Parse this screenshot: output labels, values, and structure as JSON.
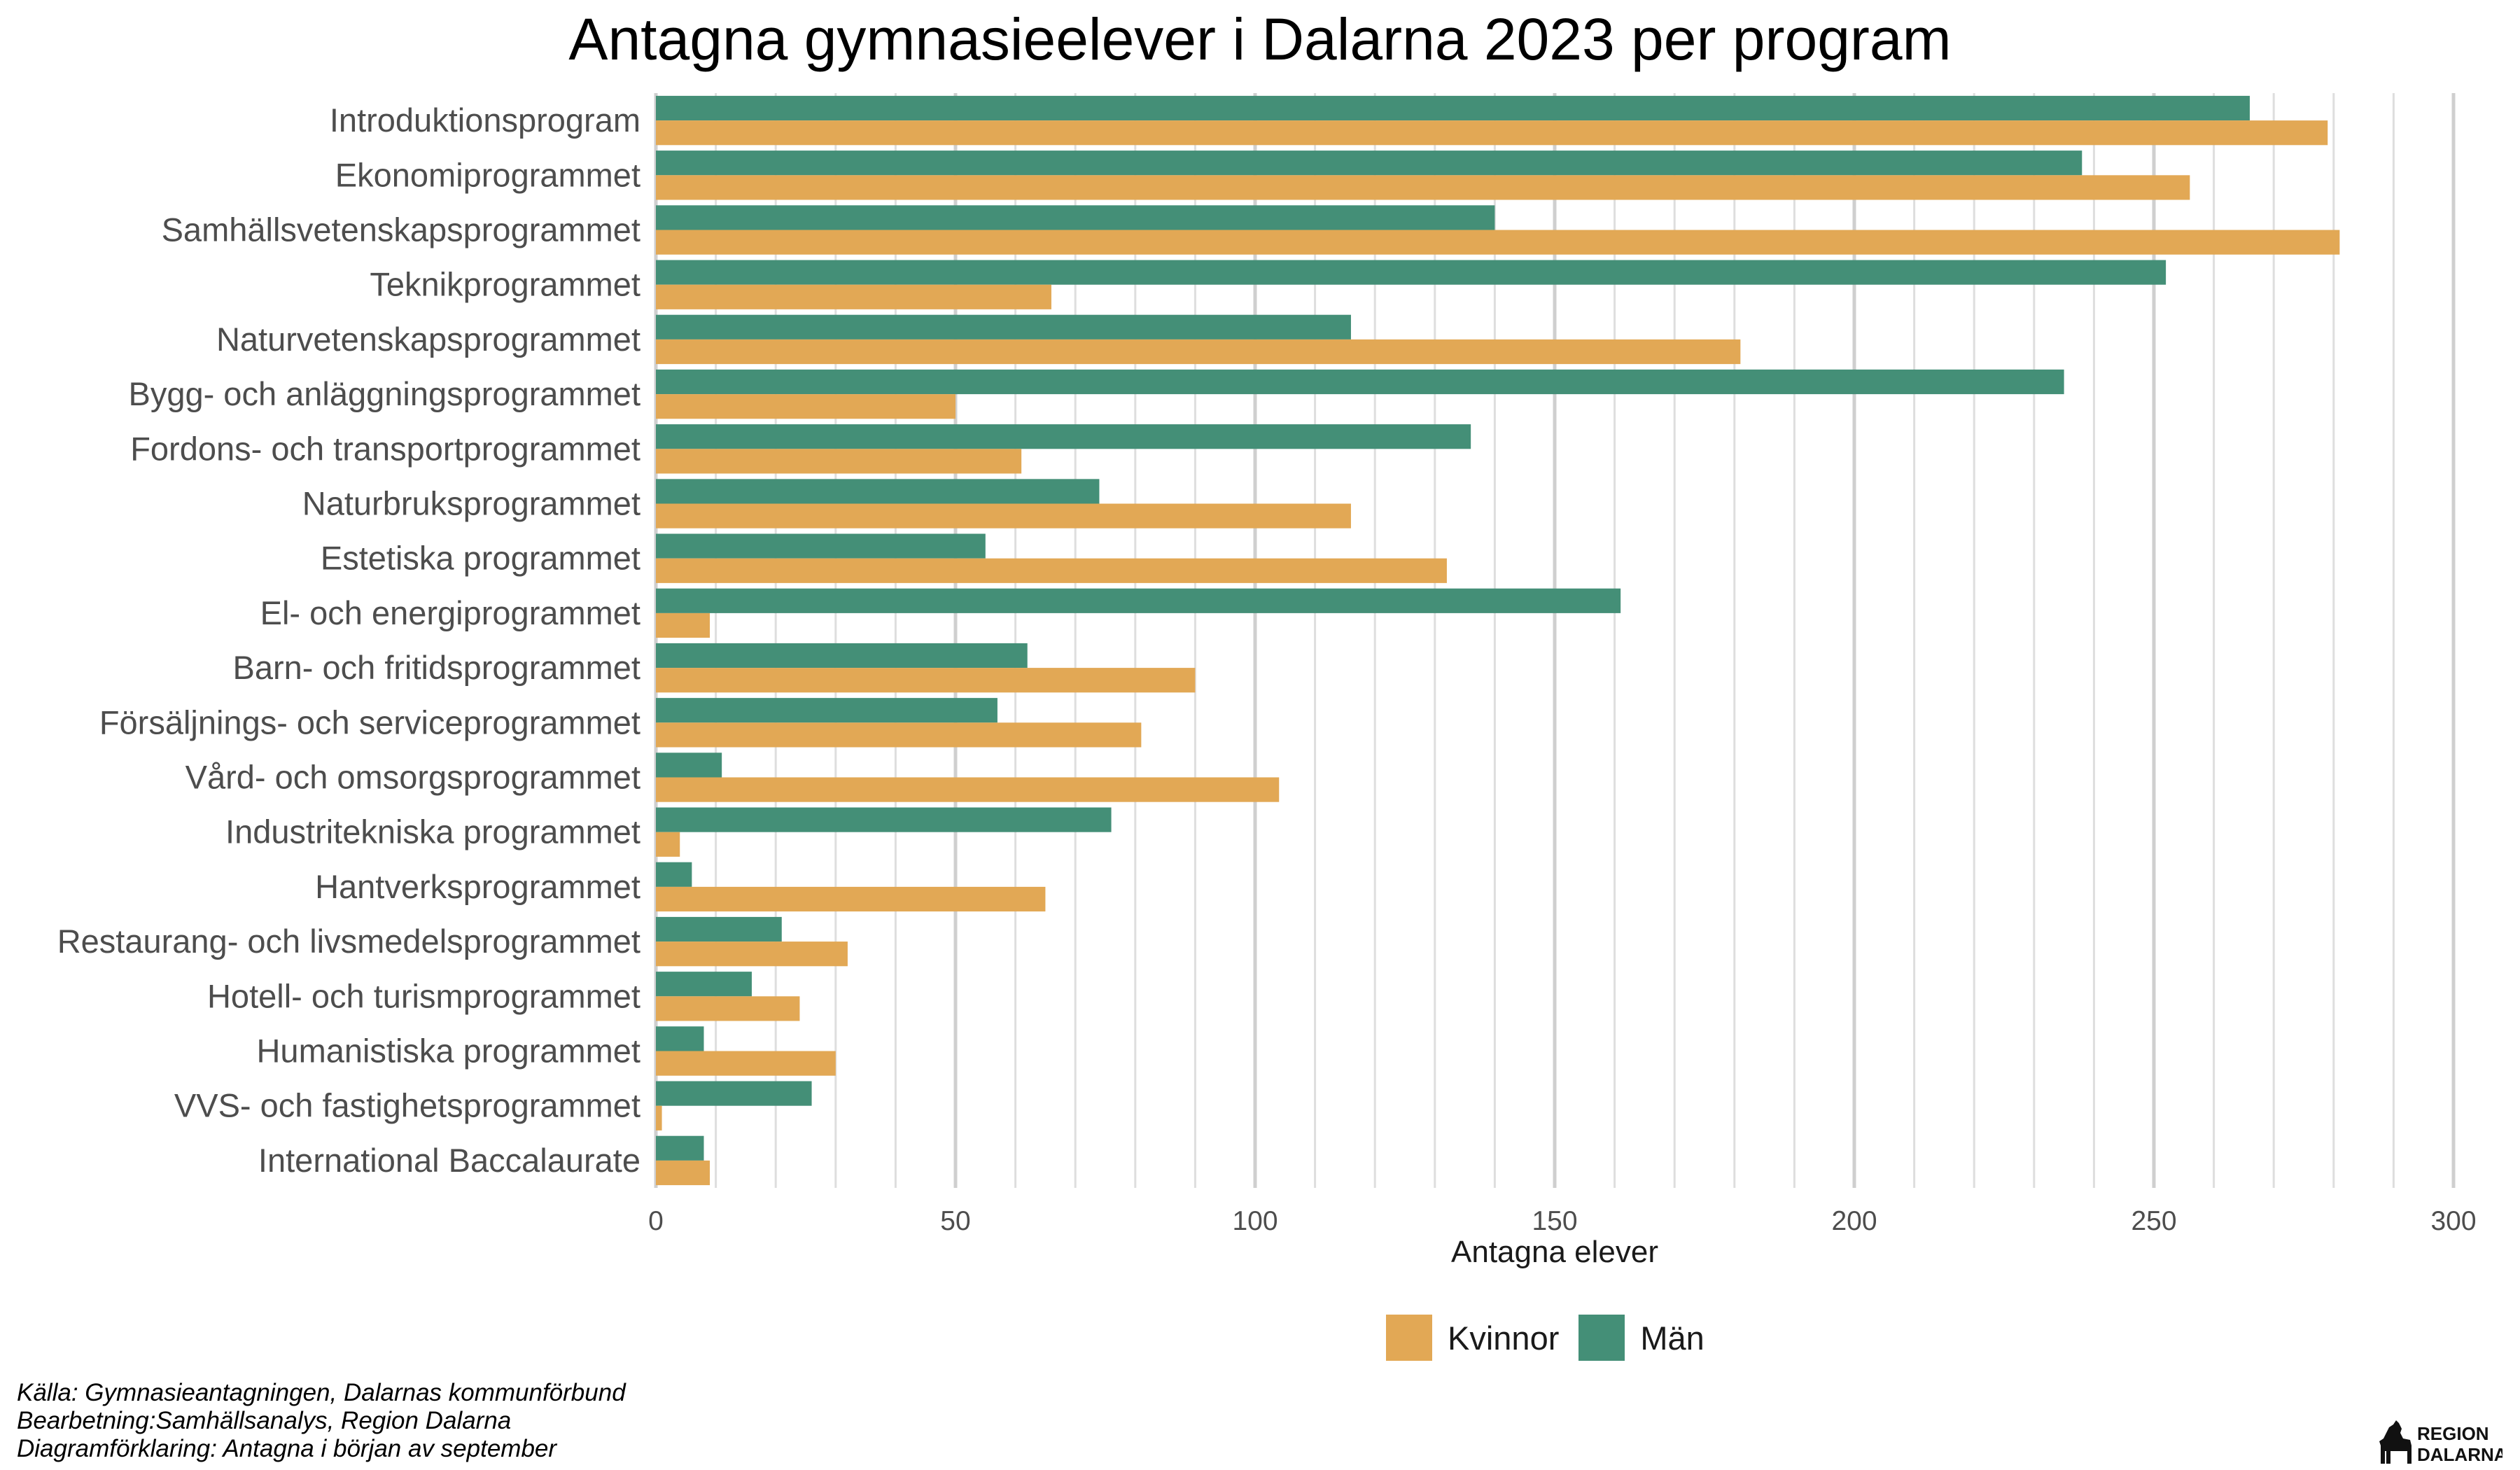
{
  "chart_data": {
    "type": "bar",
    "orientation": "horizontal",
    "title": "Antagna gymnasieelever i Dalarna 2023 per program",
    "xlabel": "Antagna elever",
    "ylabel": "",
    "xlim": [
      0,
      300
    ],
    "xticks": [
      0,
      50,
      100,
      150,
      200,
      250,
      300
    ],
    "grid": "vertical",
    "legend_position": "bottom",
    "categories": [
      "Introduktionsprogram",
      "Ekonomiprogrammet",
      "Samhällsvetenskapsprogrammet",
      "Teknikprogrammet",
      "Naturvetenskapsprogrammet",
      "Bygg- och anläggningsprogrammet",
      "Fordons- och transportprogrammet",
      "Naturbruksprogrammet",
      "Estetiska programmet",
      "El- och energiprogrammet",
      "Barn- och fritidsprogrammet",
      "Försäljnings- och serviceprogrammet",
      "Vård- och omsorgsprogrammet",
      "Industritekniska programmet",
      "Hantverksprogrammet",
      "Restaurang- och livsmedelsprogrammet",
      "Hotell- och turismprogrammet",
      "Humanistiska programmet",
      "VVS- och fastighetsprogrammet",
      "International Baccalaurate"
    ],
    "series": [
      {
        "name": "Män",
        "color": "#448f77",
        "values": [
          266,
          238,
          140,
          252,
          116,
          235,
          136,
          74,
          55,
          161,
          62,
          57,
          11,
          76,
          6,
          21,
          16,
          8,
          26,
          8
        ]
      },
      {
        "name": "Kvinnor",
        "color": "#e2a855",
        "values": [
          279,
          256,
          281,
          66,
          181,
          50,
          61,
          116,
          132,
          9,
          90,
          81,
          104,
          4,
          65,
          32,
          24,
          30,
          1,
          9
        ]
      }
    ],
    "legend": [
      "Kvinnor",
      "Män"
    ]
  },
  "caption": {
    "line1": "Källa: Gymnasieantagningen, Dalarnas kommunförbund",
    "line2": "Bearbetning:Samhällsanalys, Region Dalarna",
    "line3": "Diagramförklaring: Antagna i början av september"
  },
  "logo": {
    "line1": "REGION",
    "line2": "DALARNA",
    "icon": "dalahorse-icon"
  }
}
